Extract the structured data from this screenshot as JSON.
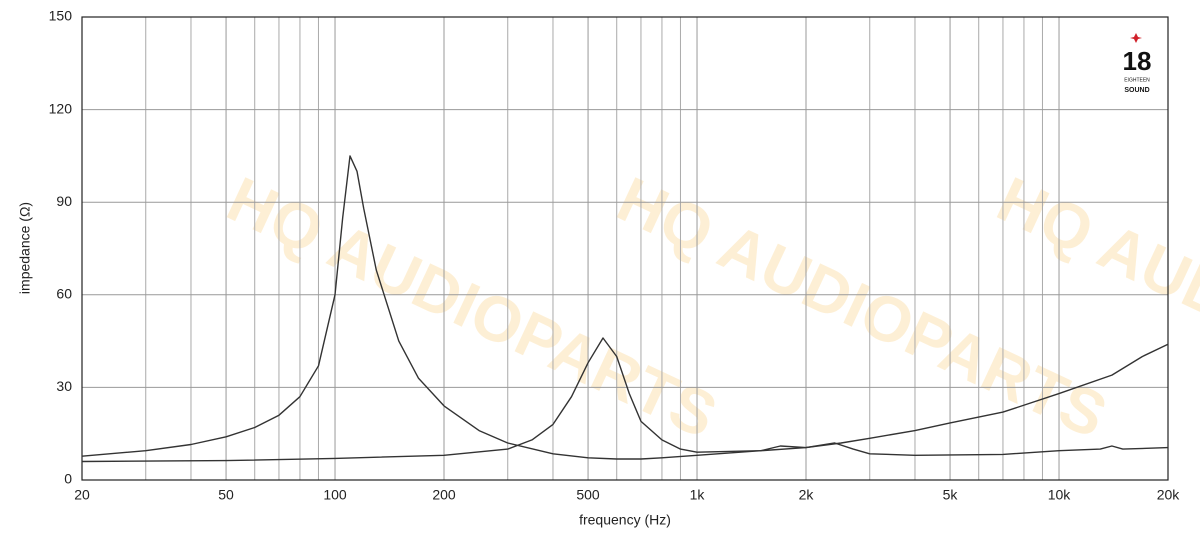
{
  "chart_data": {
    "type": "line",
    "xlabel": "frequency (Hz)",
    "ylabel": "impedance (Ω)",
    "xscale": "log",
    "grid": true,
    "watermark": "HQ AUDIOPARTS",
    "logo_number": "18",
    "logo_top": "EIGHTEEN",
    "logo_bottom": "SOUND",
    "xlim": [
      20,
      20000
    ],
    "ylim": [
      0,
      150
    ],
    "xticks": [
      20,
      50,
      100,
      200,
      500,
      {
        "value": 1000,
        "label": "1k"
      },
      {
        "value": 2000,
        "label": "2k"
      },
      {
        "value": 5000,
        "label": "5k"
      },
      {
        "value": 10000,
        "label": "10k"
      },
      {
        "value": 20000,
        "label": "20k"
      }
    ],
    "xminor_ticks": [
      30,
      40,
      60,
      70,
      80,
      90,
      300,
      400,
      600,
      700,
      800,
      900,
      3000,
      4000,
      6000,
      7000,
      8000,
      9000
    ],
    "yticks": [
      0,
      30,
      60,
      90,
      120,
      150
    ],
    "series": [
      {
        "color": "#333333",
        "x": [
          20,
          30,
          40,
          50,
          60,
          70,
          80,
          90,
          100,
          105,
          110,
          115,
          120,
          130,
          150,
          170,
          200,
          250,
          300,
          400,
          500,
          600,
          700,
          800,
          1000,
          1500,
          2000,
          2500,
          3000,
          4000,
          5000,
          7000,
          10000,
          14000,
          17000,
          20000
        ],
        "values": [
          7.7,
          9.5,
          11.5,
          14,
          17,
          21,
          27,
          37,
          60,
          85,
          105,
          100,
          88,
          68,
          45,
          33,
          24,
          16,
          12,
          8.5,
          7.2,
          6.8,
          6.8,
          7.2,
          8,
          9.5,
          10.5,
          12,
          13.5,
          16,
          18.5,
          22,
          28,
          34,
          40,
          44
        ]
      },
      {
        "color": "#333333",
        "x": [
          20,
          50,
          100,
          200,
          300,
          350,
          400,
          450,
          500,
          550,
          600,
          650,
          700,
          800,
          900,
          1000,
          1500,
          1700,
          2000,
          2400,
          2700,
          3000,
          4000,
          7000,
          10000,
          13000,
          14000,
          15000,
          20000
        ],
        "values": [
          6,
          6.3,
          7,
          8,
          10,
          13,
          18,
          27,
          38,
          46,
          40,
          28,
          19,
          13,
          10,
          9,
          9.5,
          11,
          10.5,
          12,
          10,
          8.5,
          8,
          8.3,
          9.5,
          10,
          11,
          10,
          10.5
        ]
      }
    ]
  }
}
